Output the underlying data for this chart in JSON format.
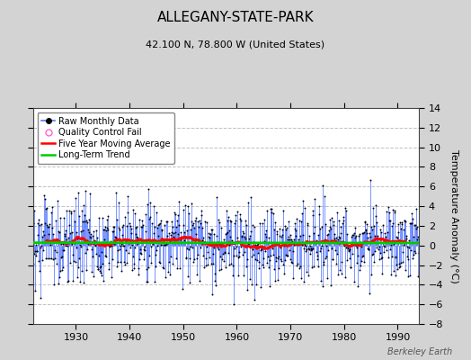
{
  "title": "ALLEGANY-STATE-PARK",
  "subtitle": "42.100 N, 78.800 W (United States)",
  "ylabel": "Temperature Anomaly (°C)",
  "watermark": "Berkeley Earth",
  "xmin": 1922,
  "xmax": 1994,
  "ymin": -8,
  "ymax": 14,
  "yticks": [
    -8,
    -6,
    -4,
    -2,
    0,
    2,
    4,
    6,
    8,
    10,
    12,
    14
  ],
  "xticks": [
    1930,
    1940,
    1950,
    1960,
    1970,
    1980,
    1990
  ],
  "background_color": "#d3d3d3",
  "plot_bg_color": "#ffffff",
  "grid_color": "#c0c0c0",
  "raw_line_color": "#5577ff",
  "raw_marker_color": "#000000",
  "moving_avg_color": "#ff0000",
  "trend_color": "#00cc00",
  "legend_marker_qc": "#ff66cc",
  "title_fontsize": 11,
  "subtitle_fontsize": 8,
  "legend_fontsize": 7,
  "tick_fontsize": 8,
  "ylabel_fontsize": 8,
  "seed": 123,
  "trend_intercept": 0.28,
  "trend_slope": -0.0004,
  "noise_std": 2.0,
  "spike_prob": 0.08,
  "spike_mag": 3.0
}
